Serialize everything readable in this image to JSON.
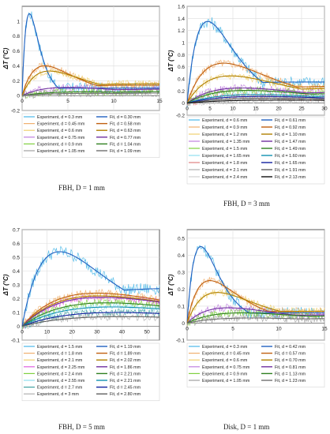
{
  "chart_data": [
    {
      "type": "line",
      "caption": "FBH, D = 1 mm",
      "ylabel": "ΔT (°C)",
      "xlabel": "t (s)",
      "xlim": [
        0,
        15
      ],
      "ylim": [
        -0.2,
        1.2
      ],
      "xticks": [
        "0",
        "5",
        "10",
        "15"
      ],
      "yticks": [
        "-0.2",
        "0",
        "0.2",
        "0.4",
        "0.6",
        "0.8",
        "1"
      ],
      "grid": true,
      "legend_position": "bottom",
      "experiments": [
        {
          "name": "Experiment, d = 0.3 mm",
          "color": "#4ab8e8"
        },
        {
          "name": "Experiment, d = 0.45 mm",
          "color": "#f0b070"
        },
        {
          "name": "Experiment, d = 0.6 mm",
          "color": "#f0d070"
        },
        {
          "name": "Experiment, d = 0.75 mm",
          "color": "#c080e0"
        },
        {
          "name": "Experiment, d = 0.9 mm",
          "color": "#80d040"
        },
        {
          "name": "Experiment, d = 1.05 mm",
          "color": "#a0a0a0"
        }
      ],
      "fits": [
        {
          "name": "Fit, d = 0.30 mm",
          "color": "#2060c0",
          "peak": 1.1,
          "tpeak": 0.8,
          "tail": 0.1
        },
        {
          "name": "Fit, d = 0.58 mm",
          "color": "#c06010",
          "peak": 0.4,
          "tpeak": 2.5,
          "tail": 0.14
        },
        {
          "name": "Fit, d = 0.63 mm",
          "color": "#b08000",
          "peak": 0.33,
          "tpeak": 3.0,
          "tail": 0.16
        },
        {
          "name": "Fit, d = 0.77 mm",
          "color": "#7030a0",
          "peak": 0.11,
          "tpeak": 5.0,
          "tail": 0.09
        },
        {
          "name": "Fit, d = 1.04 mm",
          "color": "#308020",
          "peak": 0.05,
          "tpeak": 7.0,
          "tail": 0.06
        },
        {
          "name": "Fit, d = 1.09 mm",
          "color": "#707070",
          "peak": 0.03,
          "tpeak": 8.0,
          "tail": 0.04
        }
      ]
    },
    {
      "type": "line",
      "caption": "FBH, D = 3 mm",
      "ylabel": "ΔT (°C)",
      "xlabel": "t (s)",
      "xlim": [
        0,
        30
      ],
      "ylim": [
        -0.2,
        1.6
      ],
      "xticks": [
        "0",
        "5",
        "10",
        "15",
        "20",
        "25",
        "30"
      ],
      "yticks": [
        "-0.2",
        "0",
        "0.2",
        "0.4",
        "0.6",
        "0.8",
        "1",
        "1.2",
        "1.4",
        "1.6"
      ],
      "grid": true,
      "legend_position": "bottom",
      "experiments": [
        {
          "name": "Experiment, d = 0.6 mm",
          "color": "#4ab8e8"
        },
        {
          "name": "Experiment, d = 0.9 mm",
          "color": "#f0b070"
        },
        {
          "name": "Experiment, d = 1.2 mm",
          "color": "#f0d070"
        },
        {
          "name": "Experiment, d = 1.35 mm",
          "color": "#c080e0"
        },
        {
          "name": "Experiment, d = 1.5 mm",
          "color": "#80d040"
        },
        {
          "name": "Experiment, d = 1.65 mm",
          "color": "#90e0f0"
        },
        {
          "name": "Experiment, d = 1.8 mm",
          "color": "#e08080"
        },
        {
          "name": "Experiment, d = 2.1 mm",
          "color": "#b0b0b0"
        },
        {
          "name": "Experiment, d = 2.4 mm",
          "color": "#d0d0d0"
        }
      ],
      "fits": [
        {
          "name": "Fit, d = 0.61 mm",
          "color": "#2060c0",
          "peak": 1.35,
          "tpeak": 4.5,
          "tail": 0.35
        },
        {
          "name": "Fit, d = 0.92 mm",
          "color": "#c06010",
          "peak": 0.66,
          "tpeak": 8.0,
          "tail": 0.28
        },
        {
          "name": "Fit, d = 1.10 mm",
          "color": "#b08000",
          "peak": 0.45,
          "tpeak": 9.5,
          "tail": 0.25
        },
        {
          "name": "Fit, d = 1.47 mm",
          "color": "#7030a0",
          "peak": 0.25,
          "tpeak": 12.0,
          "tail": 0.19
        },
        {
          "name": "Fit, d = 1.49 mm",
          "color": "#308020",
          "peak": 0.21,
          "tpeak": 13.0,
          "tail": 0.17
        },
        {
          "name": "Fit, d = 1.60 mm",
          "color": "#1090b0",
          "peak": 0.14,
          "tpeak": 15.0,
          "tail": 0.13
        },
        {
          "name": "Fit, d = 1.65 mm",
          "color": "#1020a0",
          "peak": 0.11,
          "tpeak": 16.0,
          "tail": 0.1
        },
        {
          "name": "Fit, d = 1.91 mm",
          "color": "#606060",
          "peak": 0.08,
          "tpeak": 18.0,
          "tail": 0.07
        },
        {
          "name": "Fit, d = 2.13 mm",
          "color": "#101010",
          "peak": 0.05,
          "tpeak": 20.0,
          "tail": 0.045
        }
      ]
    },
    {
      "type": "line",
      "caption": "FBH, D = 5 mm",
      "ylabel": "ΔT (°C)",
      "xlabel": "t (s)",
      "xlim": [
        0,
        55
      ],
      "ylim": [
        -0.1,
        0.7
      ],
      "xticks": [
        "0",
        "10",
        "20",
        "30",
        "40",
        "50"
      ],
      "yticks": [
        "-0.1",
        "0",
        "0.1",
        "0.2",
        "0.3",
        "0.4",
        "0.5",
        "0.6",
        "0.7"
      ],
      "grid": true,
      "legend_position": "bottom",
      "experiments": [
        {
          "name": "Experiment, d = 1.5 mm",
          "color": "#4ab8e8"
        },
        {
          "name": "Experiment, d = 1.8 mm",
          "color": "#f0b070"
        },
        {
          "name": "Experiment, d = 2.1 mm",
          "color": "#f0d070"
        },
        {
          "name": "Experiment, d = 2.25 mm",
          "color": "#e060e0"
        },
        {
          "name": "Experiment, d = 2.4 mm",
          "color": "#80d040"
        },
        {
          "name": "Experiment, d = 2.55 mm",
          "color": "#90e0f0"
        },
        {
          "name": "Experiment, d = 2.7 mm",
          "color": "#40a0a0"
        },
        {
          "name": "Experiment, d = 3 mm",
          "color": "#b0b0b0"
        }
      ],
      "fits": [
        {
          "name": "Fit, d = 1.19 mm",
          "color": "#2060c0",
          "peak": 0.54,
          "tpeak": 15.0,
          "tail": 0.28
        },
        {
          "name": "Fit, d = 1.89 mm",
          "color": "#c06010",
          "peak": 0.24,
          "tpeak": 30.0,
          "tail": 0.2
        },
        {
          "name": "Fit, d = 2.02 mm",
          "color": "#b08000",
          "peak": 0.22,
          "tpeak": 31.0,
          "tail": 0.19
        },
        {
          "name": "Fit, d = 1.86 mm",
          "color": "#7030a0",
          "peak": 0.21,
          "tpeak": 32.0,
          "tail": 0.18
        },
        {
          "name": "Fit, d = 2.21 mm",
          "color": "#308020",
          "peak": 0.17,
          "tpeak": 34.0,
          "tail": 0.15
        },
        {
          "name": "Fit, d = 2.21 mm",
          "color": "#1090b0",
          "peak": 0.14,
          "tpeak": 36.0,
          "tail": 0.13
        },
        {
          "name": "Fit, d = 2.45 mm",
          "color": "#1020a0",
          "peak": 0.1,
          "tpeak": 38.0,
          "tail": 0.095
        },
        {
          "name": "Fit, d = 2.80 mm",
          "color": "#606060",
          "peak": 0.07,
          "tpeak": 40.0,
          "tail": 0.065
        }
      ]
    },
    {
      "type": "line",
      "caption": "Disk, D = 1 mm",
      "ylabel": "ΔT (°C)",
      "xlabel": "t (s)",
      "xlim": [
        0,
        15
      ],
      "ylim": [
        -0.1,
        0.55
      ],
      "xticks": [
        "0",
        "5",
        "10",
        "15"
      ],
      "yticks": [
        "-0.1",
        "0",
        "0.1",
        "0.2",
        "0.3",
        "0.4",
        "0.5"
      ],
      "grid": true,
      "legend_position": "bottom",
      "experiments": [
        {
          "name": "Experiment, d = 0.3 mm",
          "color": "#4ab8e8"
        },
        {
          "name": "Experiment, d = 0.45 mm",
          "color": "#f0b070"
        },
        {
          "name": "Experiment, d = 0.6 mm",
          "color": "#f0d070"
        },
        {
          "name": "Experiment, d = 0.75 mm",
          "color": "#c080e0"
        },
        {
          "name": "Experiment, d = 0.9 mm",
          "color": "#80d040"
        },
        {
          "name": "Experiment, d = 1.05 mm",
          "color": "#a0a0a0"
        }
      ],
      "fits": [
        {
          "name": "Fit, d = 0.42 mm",
          "color": "#2060c0",
          "peak": 0.45,
          "tpeak": 1.5,
          "tail": 0.06
        },
        {
          "name": "Fit, d = 0.57 mm",
          "color": "#c06010",
          "peak": 0.25,
          "tpeak": 2.5,
          "tail": 0.07
        },
        {
          "name": "Fit, d = 0.70 mm",
          "color": "#b08000",
          "peak": 0.18,
          "tpeak": 3.3,
          "tail": 0.07
        },
        {
          "name": "Fit, d = 0.81 mm",
          "color": "#7030a0",
          "peak": 0.09,
          "tpeak": 4.5,
          "tail": 0.05
        },
        {
          "name": "Fit, d = 1.13 mm",
          "color": "#308020",
          "peak": 0.06,
          "tpeak": 6.0,
          "tail": 0.045
        },
        {
          "name": "Fit, d = 1.23 mm",
          "color": "#707070",
          "peak": 0.03,
          "tpeak": 7.0,
          "tail": 0.03
        }
      ]
    }
  ]
}
